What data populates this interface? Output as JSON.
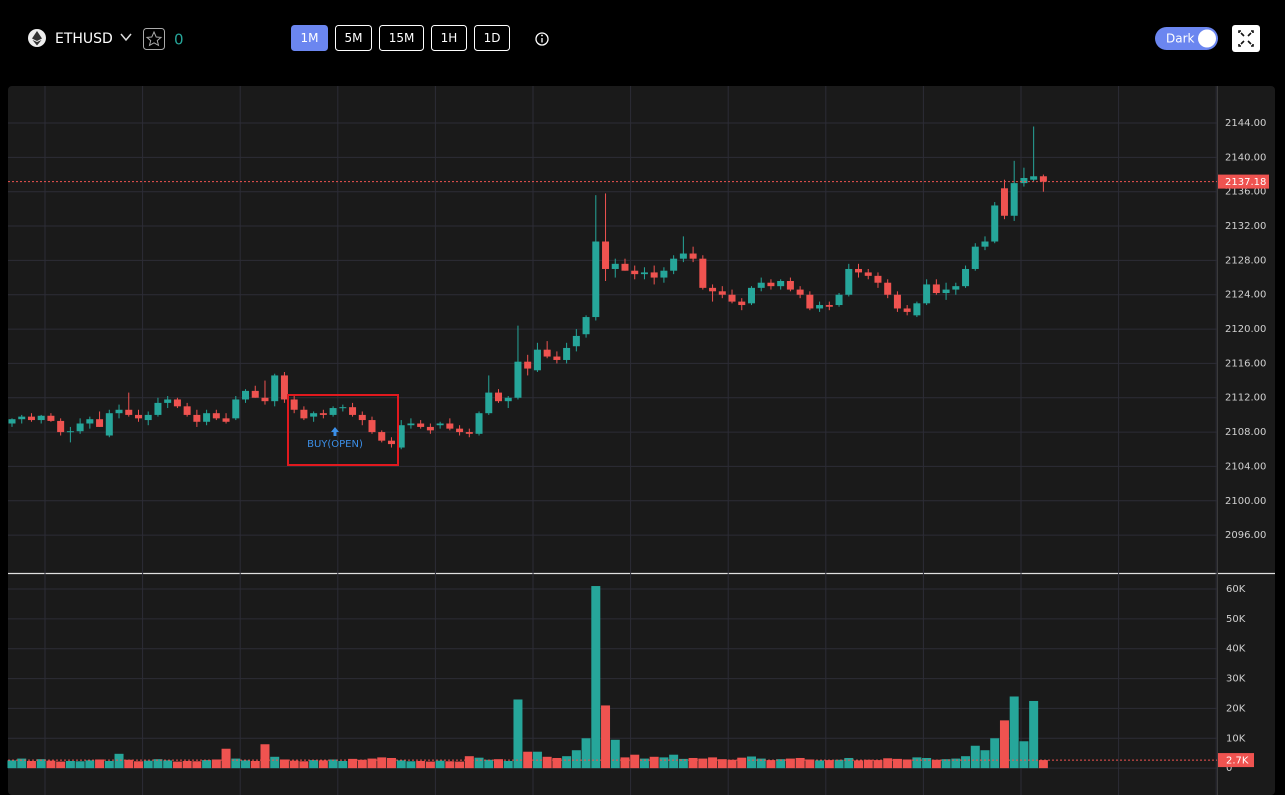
{
  "toolbar": {
    "symbol": "ETHUSD",
    "favorites": "0",
    "intervals": [
      "1M",
      "5M",
      "15M",
      "1H",
      "1D"
    ],
    "theme": "Dark"
  },
  "chart_data": [
    {
      "type": "candlestick",
      "up_color": "#26a69a",
      "down_color": "#ef5350",
      "annotation": "BUY(OPEN)",
      "ylim": [
        2091.7,
        2148.2
      ],
      "yticks": [
        {
          "value": 2096,
          "label": "2096.00"
        },
        {
          "value": 2100,
          "label": "2100.00"
        },
        {
          "value": 2104,
          "label": "2104.00"
        },
        {
          "value": 2108,
          "label": "2108.00"
        },
        {
          "value": 2112,
          "label": "2112.00"
        },
        {
          "value": 2116,
          "label": "2116.00"
        },
        {
          "value": 2120,
          "label": "2120.00"
        },
        {
          "value": 2124,
          "label": "2124.00"
        },
        {
          "value": 2128,
          "label": "2128.00"
        },
        {
          "value": 2132,
          "label": "2132.00"
        },
        {
          "value": 2136,
          "label": "2136.00"
        },
        {
          "value": 2140,
          "label": "2140.00"
        },
        {
          "value": 2144,
          "label": "2144.00"
        }
      ],
      "grid": true,
      "ohlc": [
        [
          2109.0,
          2109.6,
          2108.6,
          2109.5
        ],
        [
          2109.5,
          2110.0,
          2109.0,
          2109.8
        ],
        [
          2109.8,
          2110.2,
          2109.2,
          2109.4
        ],
        [
          2109.4,
          2110.0,
          2109.0,
          2109.9
        ],
        [
          2109.9,
          2110.2,
          2109.2,
          2109.3
        ],
        [
          2109.3,
          2109.6,
          2107.6,
          2108.0
        ],
        [
          2108.0,
          2108.6,
          2106.8,
          2108.1
        ],
        [
          2108.1,
          2109.6,
          2107.8,
          2109.0
        ],
        [
          2109.0,
          2109.8,
          2108.4,
          2109.5
        ],
        [
          2109.5,
          2110.4,
          2108.6,
          2108.6
        ],
        [
          2107.6,
          2110.6,
          2107.4,
          2110.2
        ],
        [
          2110.2,
          2111.2,
          2109.6,
          2110.6
        ],
        [
          2110.6,
          2112.6,
          2109.8,
          2110.0
        ],
        [
          2110.0,
          2110.6,
          2109.2,
          2109.6
        ],
        [
          2109.4,
          2110.4,
          2108.8,
          2110.0
        ],
        [
          2110.0,
          2112.0,
          2109.8,
          2111.4
        ],
        [
          2111.4,
          2112.2,
          2110.8,
          2111.8
        ],
        [
          2111.8,
          2112.0,
          2110.8,
          2111.0
        ],
        [
          2111.0,
          2111.4,
          2109.8,
          2110.0
        ],
        [
          2110.0,
          2110.6,
          2108.6,
          2109.2
        ],
        [
          2109.2,
          2110.6,
          2108.8,
          2110.2
        ],
        [
          2110.2,
          2110.6,
          2109.4,
          2109.6
        ],
        [
          2109.6,
          2110.2,
          2109.0,
          2109.2
        ],
        [
          2109.6,
          2112.2,
          2109.4,
          2111.8
        ],
        [
          2111.8,
          2113.0,
          2111.4,
          2112.8
        ],
        [
          2112.8,
          2113.4,
          2112.0,
          2112.0
        ],
        [
          2112.0,
          2114.0,
          2111.2,
          2111.6
        ],
        [
          2111.6,
          2114.8,
          2111.0,
          2114.6
        ],
        [
          2114.6,
          2115.0,
          2111.4,
          2111.8
        ],
        [
          2111.8,
          2112.2,
          2110.2,
          2110.6
        ],
        [
          2110.6,
          2111.0,
          2109.4,
          2109.6
        ],
        [
          2109.8,
          2110.4,
          2109.2,
          2110.2
        ],
        [
          2110.2,
          2110.6,
          2109.6,
          2110.0
        ],
        [
          2110.0,
          2111.0,
          2109.8,
          2110.8
        ],
        [
          2110.8,
          2111.2,
          2110.4,
          2110.9
        ],
        [
          2110.9,
          2111.4,
          2109.8,
          2110.0
        ],
        [
          2110.0,
          2110.4,
          2108.8,
          2109.4
        ],
        [
          2109.4,
          2109.8,
          2107.8,
          2108.0
        ],
        [
          2108.0,
          2108.2,
          2106.8,
          2107.0
        ],
        [
          2107.0,
          2107.4,
          2106.2,
          2106.6
        ],
        [
          2106.2,
          2109.4,
          2106.0,
          2108.8
        ],
        [
          2108.8,
          2109.6,
          2108.4,
          2109.0
        ],
        [
          2109.0,
          2109.4,
          2108.4,
          2108.6
        ],
        [
          2108.6,
          2109.0,
          2107.8,
          2108.2
        ],
        [
          2108.8,
          2109.2,
          2108.4,
          2109.0
        ],
        [
          2109.0,
          2109.6,
          2108.2,
          2108.4
        ],
        [
          2108.4,
          2108.8,
          2107.6,
          2108.0
        ],
        [
          2108.0,
          2108.4,
          2107.4,
          2107.8
        ],
        [
          2107.8,
          2110.4,
          2107.6,
          2110.2
        ],
        [
          2110.2,
          2114.6,
          2110.0,
          2112.6
        ],
        [
          2112.6,
          2113.0,
          2111.4,
          2111.6
        ],
        [
          2111.6,
          2112.2,
          2110.8,
          2112.0
        ],
        [
          2112.0,
          2120.4,
          2111.8,
          2116.2
        ],
        [
          2116.2,
          2117.0,
          2114.6,
          2115.4
        ],
        [
          2115.2,
          2118.4,
          2115.0,
          2117.6
        ],
        [
          2117.6,
          2118.6,
          2116.6,
          2116.8
        ],
        [
          2116.8,
          2117.4,
          2116.0,
          2116.4
        ],
        [
          2116.4,
          2118.4,
          2116.0,
          2117.8
        ],
        [
          2118.0,
          2120.0,
          2117.4,
          2119.2
        ],
        [
          2119.4,
          2121.6,
          2119.0,
          2121.4
        ],
        [
          2121.4,
          2135.6,
          2121.0,
          2130.2
        ],
        [
          2130.2,
          2135.8,
          2125.6,
          2127.0
        ],
        [
          2127.0,
          2128.2,
          2126.0,
          2127.6
        ],
        [
          2127.6,
          2128.2,
          2126.8,
          2126.8
        ],
        [
          2126.8,
          2127.4,
          2125.8,
          2126.4
        ],
        [
          2126.4,
          2127.2,
          2125.8,
          2126.6
        ],
        [
          2126.6,
          2127.4,
          2125.2,
          2126.0
        ],
        [
          2126.0,
          2127.2,
          2125.4,
          2126.8
        ],
        [
          2126.8,
          2128.6,
          2126.4,
          2128.2
        ],
        [
          2128.2,
          2130.8,
          2127.8,
          2128.8
        ],
        [
          2128.8,
          2129.6,
          2127.8,
          2128.2
        ],
        [
          2128.2,
          2128.6,
          2124.6,
          2124.8
        ],
        [
          2124.8,
          2125.2,
          2123.2,
          2124.4
        ],
        [
          2124.4,
          2125.0,
          2123.6,
          2124.0
        ],
        [
          2124.0,
          2124.6,
          2123.0,
          2123.2
        ],
        [
          2123.2,
          2123.6,
          2122.2,
          2122.8
        ],
        [
          2123.0,
          2125.0,
          2122.8,
          2124.8
        ],
        [
          2124.8,
          2126.0,
          2124.4,
          2125.4
        ],
        [
          2125.4,
          2125.8,
          2124.6,
          2125.0
        ],
        [
          2125.0,
          2125.8,
          2124.6,
          2125.6
        ],
        [
          2125.6,
          2126.0,
          2124.4,
          2124.6
        ],
        [
          2124.6,
          2125.0,
          2123.6,
          2124.0
        ],
        [
          2124.0,
          2124.4,
          2122.2,
          2122.4
        ],
        [
          2122.4,
          2123.2,
          2122.0,
          2122.8
        ],
        [
          2122.8,
          2123.2,
          2122.2,
          2122.6
        ],
        [
          2122.8,
          2124.2,
          2122.6,
          2124.0
        ],
        [
          2124.0,
          2127.6,
          2123.8,
          2127.0
        ],
        [
          2127.0,
          2127.6,
          2126.0,
          2126.6
        ],
        [
          2126.6,
          2127.0,
          2125.8,
          2126.2
        ],
        [
          2126.2,
          2126.6,
          2124.8,
          2125.4
        ],
        [
          2125.4,
          2125.8,
          2123.6,
          2124.0
        ],
        [
          2124.0,
          2124.4,
          2122.0,
          2122.4
        ],
        [
          2122.4,
          2122.8,
          2121.6,
          2122.0
        ],
        [
          2121.6,
          2123.2,
          2121.4,
          2123.0
        ],
        [
          2123.0,
          2125.8,
          2122.8,
          2125.2
        ],
        [
          2125.2,
          2125.8,
          2124.0,
          2124.2
        ],
        [
          2124.2,
          2125.4,
          2123.4,
          2124.6
        ],
        [
          2124.6,
          2125.4,
          2124.0,
          2125.0
        ],
        [
          2125.0,
          2127.4,
          2124.8,
          2127.0
        ],
        [
          2127.0,
          2130.0,
          2126.8,
          2129.6
        ],
        [
          2129.6,
          2130.8,
          2129.2,
          2130.2
        ],
        [
          2130.2,
          2134.8,
          2130.0,
          2134.4
        ],
        [
          2136.4,
          2137.4,
          2132.8,
          2133.2
        ],
        [
          2133.2,
          2139.6,
          2132.6,
          2137.0
        ],
        [
          2137.0,
          2138.8,
          2136.6,
          2137.6
        ],
        [
          2137.4,
          2143.6,
          2137.2,
          2137.8
        ],
        [
          2137.8,
          2138.0,
          2136.0,
          2137.18
        ]
      ]
    },
    {
      "type": "bar",
      "ylim": [
        -9000,
        64700
      ],
      "yticks": [
        0,
        {
          "value": 10000,
          "label": "10K"
        },
        {
          "value": 20000,
          "label": "20K"
        },
        {
          "value": 30000,
          "label": "30K"
        },
        {
          "value": 40000,
          "label": "40K"
        },
        {
          "value": 50000,
          "label": "50K"
        },
        {
          "value": 60000,
          "label": "60K"
        }
      ],
      "values": [
        2600,
        3200,
        2400,
        3000,
        2500,
        2200,
        2400,
        2300,
        2600,
        2900,
        2400,
        4800,
        2800,
        2300,
        2500,
        3000,
        2600,
        2200,
        2400,
        2300,
        2700,
        2900,
        6500,
        3200,
        2600,
        2400,
        8000,
        3800,
        2900,
        2500,
        2300,
        2700,
        2600,
        2900,
        2400,
        3100,
        2800,
        3200,
        3600,
        3400,
        2600,
        2300,
        2400,
        2200,
        2500,
        2300,
        2200,
        4000,
        3500,
        2800,
        3000,
        2400,
        23000,
        5500,
        5500,
        3800,
        3400,
        4000,
        6000,
        10000,
        61000,
        21000,
        9500,
        3600,
        4500,
        3200,
        3800,
        3600,
        4500,
        3100,
        3400,
        3200,
        3600,
        3000,
        2800,
        3500,
        3900,
        3200,
        2700,
        3000,
        3200,
        3400,
        2900,
        2600,
        2700,
        2800,
        3400,
        2600,
        2800,
        2700,
        3300,
        3100,
        2900,
        3600,
        3400,
        2800,
        3000,
        3200,
        4000,
        7500,
        6000,
        10000,
        16000,
        24000,
        9000,
        22500,
        2700
      ],
      "value_labels": [
        null,
        null,
        null,
        null,
        null,
        null,
        null,
        null,
        null,
        null,
        null,
        null,
        null,
        null,
        null,
        null,
        null,
        null,
        null,
        null,
        null,
        null,
        null,
        null,
        null,
        null,
        null,
        null,
        null,
        null,
        null,
        null,
        null,
        null,
        null,
        null,
        null,
        null,
        null,
        null,
        null,
        null,
        null,
        null,
        null,
        null,
        null,
        null,
        null,
        null,
        null,
        null,
        null,
        null,
        null,
        null,
        null,
        null,
        null,
        null,
        null,
        null,
        null,
        null,
        null,
        null,
        null,
        null,
        null,
        null,
        null,
        null,
        null,
        null,
        null,
        null,
        null,
        null,
        null,
        null,
        null,
        null,
        null,
        null,
        null,
        null,
        null,
        null,
        null,
        null,
        null,
        null,
        null,
        null,
        null,
        null,
        null,
        null,
        null,
        null,
        null,
        null,
        null,
        null,
        null,
        null,
        "2.7K"
      ]
    }
  ]
}
